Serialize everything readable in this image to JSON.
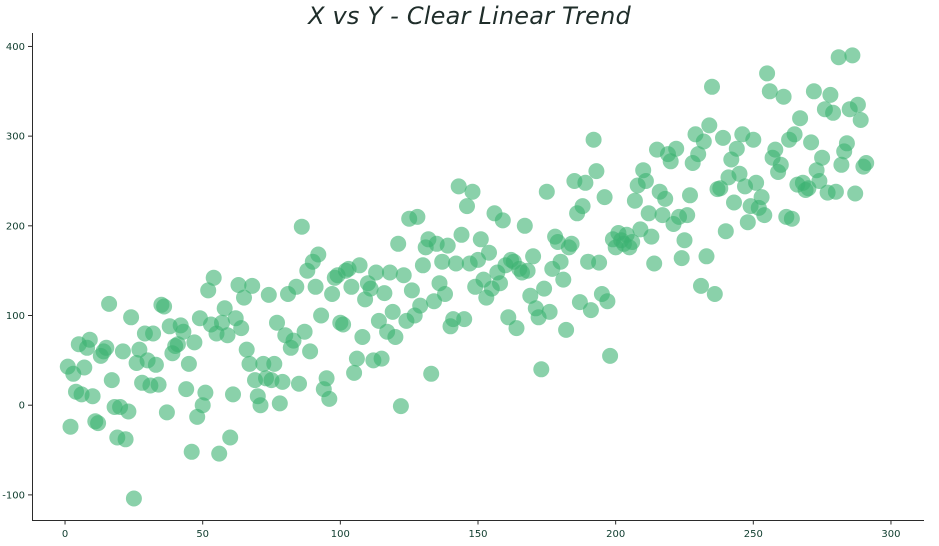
{
  "chart_data": {
    "type": "scatter",
    "title": "X vs Y - Clear Linear Trend",
    "xlabel": "",
    "ylabel": "",
    "xlim": [
      -12,
      312
    ],
    "ylim": [
      -128,
      415
    ],
    "x_ticks": [
      0,
      50,
      100,
      150,
      200,
      250,
      300
    ],
    "y_ticks": [
      -100,
      0,
      100,
      200,
      300,
      400
    ],
    "grid": false,
    "legend": false,
    "marker_color": "#3cb371",
    "marker_opacity": 0.6,
    "axis_color": "#2b2b2b",
    "points": [
      [
        1,
        43
      ],
      [
        2,
        -24
      ],
      [
        3,
        35
      ],
      [
        4,
        15
      ],
      [
        5,
        68
      ],
      [
        6,
        12
      ],
      [
        7,
        42
      ],
      [
        8,
        64
      ],
      [
        9,
        73
      ],
      [
        10,
        10
      ],
      [
        11,
        -18
      ],
      [
        12,
        -20
      ],
      [
        13,
        55
      ],
      [
        14,
        60
      ],
      [
        15,
        64
      ],
      [
        16,
        113
      ],
      [
        17,
        28
      ],
      [
        18,
        -2
      ],
      [
        19,
        -36
      ],
      [
        20,
        -2
      ],
      [
        21,
        60
      ],
      [
        22,
        -38
      ],
      [
        23,
        -7
      ],
      [
        24,
        98
      ],
      [
        25,
        -104
      ],
      [
        26,
        47
      ],
      [
        27,
        62
      ],
      [
        28,
        25
      ],
      [
        29,
        80
      ],
      [
        30,
        50
      ],
      [
        31,
        22
      ],
      [
        32,
        80
      ],
      [
        33,
        45
      ],
      [
        34,
        23
      ],
      [
        35,
        112
      ],
      [
        36,
        110
      ],
      [
        37,
        -8
      ],
      [
        38,
        88
      ],
      [
        39,
        58
      ],
      [
        40,
        66
      ],
      [
        41,
        68
      ],
      [
        42,
        89
      ],
      [
        43,
        82
      ],
      [
        44,
        18
      ],
      [
        45,
        46
      ],
      [
        46,
        -52
      ],
      [
        47,
        70
      ],
      [
        48,
        -13
      ],
      [
        49,
        97
      ],
      [
        50,
        0
      ],
      [
        51,
        14
      ],
      [
        52,
        128
      ],
      [
        53,
        90
      ],
      [
        54,
        142
      ],
      [
        55,
        80
      ],
      [
        56,
        -54
      ],
      [
        57,
        92
      ],
      [
        58,
        108
      ],
      [
        59,
        78
      ],
      [
        60,
        -36
      ],
      [
        61,
        12
      ],
      [
        62,
        97
      ],
      [
        63,
        134
      ],
      [
        64,
        86
      ],
      [
        65,
        120
      ],
      [
        66,
        62
      ],
      [
        67,
        46
      ],
      [
        68,
        133
      ],
      [
        69,
        28
      ],
      [
        70,
        10
      ],
      [
        71,
        0
      ],
      [
        72,
        46
      ],
      [
        73,
        30
      ],
      [
        74,
        123
      ],
      [
        75,
        28
      ],
      [
        76,
        46
      ],
      [
        77,
        92
      ],
      [
        78,
        2
      ],
      [
        79,
        26
      ],
      [
        80,
        78
      ],
      [
        81,
        124
      ],
      [
        82,
        64
      ],
      [
        83,
        72
      ],
      [
        84,
        132
      ],
      [
        85,
        24
      ],
      [
        86,
        199
      ],
      [
        87,
        82
      ],
      [
        88,
        150
      ],
      [
        89,
        60
      ],
      [
        90,
        160
      ],
      [
        91,
        132
      ],
      [
        92,
        168
      ],
      [
        93,
        100
      ],
      [
        94,
        18
      ],
      [
        95,
        30
      ],
      [
        96,
        7
      ],
      [
        97,
        124
      ],
      [
        98,
        142
      ],
      [
        99,
        145
      ],
      [
        100,
        92
      ],
      [
        101,
        90
      ],
      [
        102,
        150
      ],
      [
        103,
        152
      ],
      [
        104,
        132
      ],
      [
        105,
        36
      ],
      [
        106,
        52
      ],
      [
        107,
        156
      ],
      [
        108,
        76
      ],
      [
        109,
        118
      ],
      [
        110,
        136
      ],
      [
        111,
        130
      ],
      [
        112,
        50
      ],
      [
        113,
        148
      ],
      [
        114,
        94
      ],
      [
        115,
        52
      ],
      [
        116,
        125
      ],
      [
        117,
        82
      ],
      [
        118,
        148
      ],
      [
        119,
        104
      ],
      [
        120,
        76
      ],
      [
        121,
        180
      ],
      [
        122,
        -1
      ],
      [
        123,
        145
      ],
      [
        124,
        94
      ],
      [
        125,
        208
      ],
      [
        126,
        128
      ],
      [
        127,
        100
      ],
      [
        128,
        210
      ],
      [
        129,
        111
      ],
      [
        130,
        156
      ],
      [
        131,
        176
      ],
      [
        132,
        185
      ],
      [
        133,
        35
      ],
      [
        134,
        116
      ],
      [
        135,
        180
      ],
      [
        136,
        136
      ],
      [
        137,
        160
      ],
      [
        138,
        124
      ],
      [
        139,
        178
      ],
      [
        140,
        88
      ],
      [
        141,
        96
      ],
      [
        142,
        158
      ],
      [
        143,
        244
      ],
      [
        144,
        190
      ],
      [
        145,
        96
      ],
      [
        146,
        222
      ],
      [
        147,
        158
      ],
      [
        148,
        238
      ],
      [
        149,
        132
      ],
      [
        150,
        162
      ],
      [
        151,
        185
      ],
      [
        152,
        140
      ],
      [
        153,
        120
      ],
      [
        154,
        170
      ],
      [
        155,
        130
      ],
      [
        156,
        214
      ],
      [
        157,
        148
      ],
      [
        158,
        136
      ],
      [
        159,
        206
      ],
      [
        160,
        156
      ],
      [
        161,
        98
      ],
      [
        162,
        162
      ],
      [
        163,
        160
      ],
      [
        164,
        86
      ],
      [
        165,
        152
      ],
      [
        166,
        148
      ],
      [
        167,
        200
      ],
      [
        168,
        150
      ],
      [
        169,
        122
      ],
      [
        170,
        166
      ],
      [
        171,
        108
      ],
      [
        172,
        98
      ],
      [
        173,
        40
      ],
      [
        174,
        130
      ],
      [
        175,
        238
      ],
      [
        176,
        104
      ],
      [
        177,
        152
      ],
      [
        178,
        188
      ],
      [
        179,
        182
      ],
      [
        180,
        160
      ],
      [
        181,
        140
      ],
      [
        182,
        84
      ],
      [
        183,
        176
      ],
      [
        184,
        180
      ],
      [
        185,
        250
      ],
      [
        186,
        214
      ],
      [
        187,
        115
      ],
      [
        188,
        222
      ],
      [
        189,
        248
      ],
      [
        190,
        160
      ],
      [
        191,
        106
      ],
      [
        192,
        296
      ],
      [
        193,
        261
      ],
      [
        194,
        159
      ],
      [
        195,
        124
      ],
      [
        196,
        232
      ],
      [
        197,
        116
      ],
      [
        198,
        55
      ],
      [
        199,
        185
      ],
      [
        200,
        176
      ],
      [
        201,
        192
      ],
      [
        202,
        184
      ],
      [
        203,
        180
      ],
      [
        204,
        190
      ],
      [
        205,
        176
      ],
      [
        206,
        182
      ],
      [
        207,
        228
      ],
      [
        208,
        245
      ],
      [
        209,
        196
      ],
      [
        210,
        262
      ],
      [
        211,
        250
      ],
      [
        212,
        214
      ],
      [
        213,
        188
      ],
      [
        214,
        158
      ],
      [
        215,
        285
      ],
      [
        216,
        238
      ],
      [
        217,
        212
      ],
      [
        218,
        230
      ],
      [
        219,
        280
      ],
      [
        220,
        272
      ],
      [
        221,
        202
      ],
      [
        222,
        286
      ],
      [
        223,
        210
      ],
      [
        224,
        164
      ],
      [
        225,
        184
      ],
      [
        226,
        212
      ],
      [
        227,
        234
      ],
      [
        228,
        270
      ],
      [
        229,
        302
      ],
      [
        230,
        280
      ],
      [
        231,
        133
      ],
      [
        232,
        294
      ],
      [
        233,
        166
      ],
      [
        234,
        312
      ],
      [
        235,
        355
      ],
      [
        236,
        124
      ],
      [
        237,
        241
      ],
      [
        238,
        242
      ],
      [
        239,
        298
      ],
      [
        240,
        194
      ],
      [
        241,
        254
      ],
      [
        242,
        274
      ],
      [
        243,
        226
      ],
      [
        244,
        286
      ],
      [
        245,
        258
      ],
      [
        246,
        302
      ],
      [
        247,
        244
      ],
      [
        248,
        204
      ],
      [
        249,
        222
      ],
      [
        250,
        296
      ],
      [
        251,
        248
      ],
      [
        252,
        220
      ],
      [
        253,
        232
      ],
      [
        254,
        212
      ],
      [
        255,
        370
      ],
      [
        256,
        350
      ],
      [
        257,
        276
      ],
      [
        258,
        285
      ],
      [
        259,
        260
      ],
      [
        260,
        268
      ],
      [
        261,
        344
      ],
      [
        262,
        210
      ],
      [
        263,
        296
      ],
      [
        264,
        208
      ],
      [
        265,
        302
      ],
      [
        266,
        246
      ],
      [
        267,
        320
      ],
      [
        268,
        248
      ],
      [
        269,
        240
      ],
      [
        270,
        242
      ],
      [
        271,
        293
      ],
      [
        272,
        350
      ],
      [
        273,
        262
      ],
      [
        274,
        250
      ],
      [
        275,
        276
      ],
      [
        276,
        330
      ],
      [
        277,
        237
      ],
      [
        278,
        346
      ],
      [
        279,
        326
      ],
      [
        280,
        238
      ],
      [
        281,
        388
      ],
      [
        282,
        268
      ],
      [
        283,
        283
      ],
      [
        284,
        292
      ],
      [
        285,
        330
      ],
      [
        286,
        390
      ],
      [
        287,
        236
      ],
      [
        288,
        335
      ],
      [
        289,
        318
      ],
      [
        290,
        266
      ],
      [
        291,
        270
      ]
    ]
  }
}
